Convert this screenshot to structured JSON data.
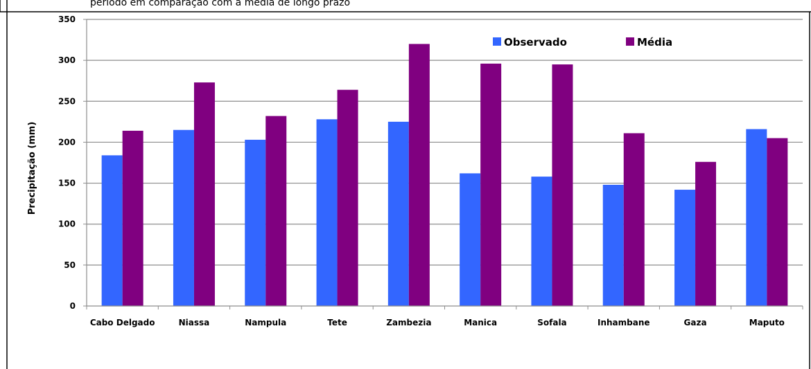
{
  "caption_fragment": "período em comparação com a média de longo prazo",
  "chart_data": {
    "type": "bar",
    "title": "",
    "xlabel": "",
    "ylabel": "Precipitação (mm)",
    "ylim": [
      0,
      350
    ],
    "yticks": [
      0,
      50,
      100,
      150,
      200,
      250,
      300,
      350
    ],
    "grid": true,
    "legend_position": "top-right",
    "categories": [
      "Cabo Delgado",
      "Niassa",
      "Nampula",
      "Tete",
      "Zambezia",
      "Manica",
      "Sofala",
      "Inhambane",
      "Gaza",
      "Maputo"
    ],
    "series": [
      {
        "name": "Observado",
        "color": "#3366FF",
        "values": [
          184,
          215,
          203,
          228,
          225,
          162,
          158,
          148,
          142,
          216
        ]
      },
      {
        "name": "Média",
        "color": "#800080",
        "values": [
          214,
          273,
          232,
          264,
          320,
          296,
          295,
          211,
          176,
          205
        ]
      }
    ]
  }
}
